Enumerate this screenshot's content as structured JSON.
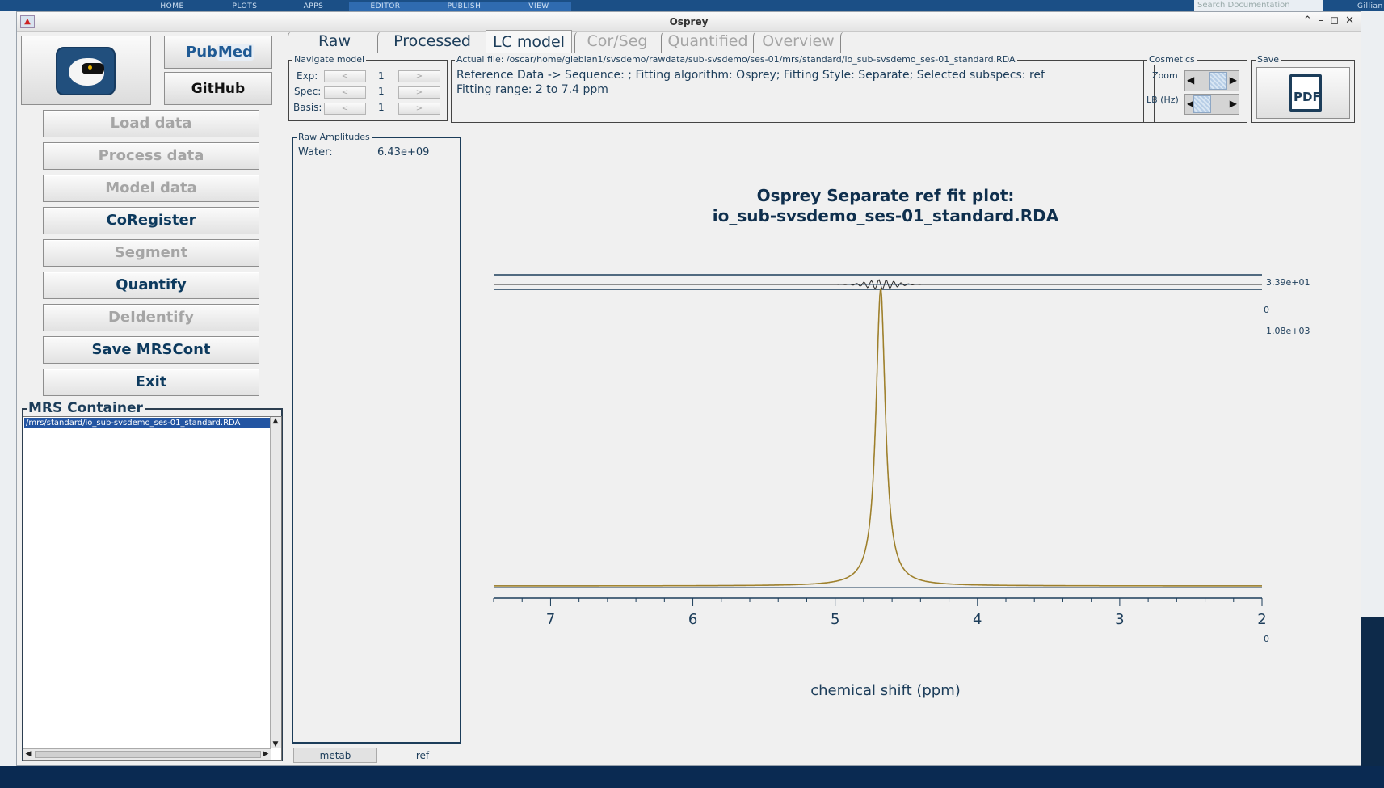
{
  "background": {
    "tabs": [
      "HOME",
      "PLOTS",
      "APPS",
      "EDITOR",
      "PUBLISH",
      "VIEW"
    ],
    "search_placeholder": "Search Documentation",
    "user": "Gillian"
  },
  "window": {
    "title": "Osprey"
  },
  "sidebar": {
    "pubmed": {
      "pub": "Pub",
      "med": "Med"
    },
    "github_label": "GitHub",
    "buttons": {
      "load": "Load data",
      "process": "Process data",
      "model": "Model data",
      "coregister": "CoRegister",
      "segment": "Segment",
      "quantify": "Quantify",
      "deidentify": "DeIdentify",
      "save_mrscont": "Save MRSCont",
      "exit": "Exit"
    },
    "container": {
      "label": "MRS Container",
      "selected_item": "/mrs/standard/io_sub-svsdemo_ses-01_standard.RDA"
    }
  },
  "tabs": [
    "Raw",
    "Processed",
    "LC model",
    "Cor/Seg",
    "Quantified",
    "Overview"
  ],
  "navigate": {
    "label": "Navigate model",
    "rows": [
      {
        "name": "Exp:",
        "value": "1"
      },
      {
        "name": "Spec:",
        "value": "1"
      },
      {
        "name": "Basis:",
        "value": "1"
      }
    ],
    "prev": "<",
    "next": ">"
  },
  "file_info": {
    "label": "Actual file: /oscar/home/gleblan1/svsdemo/rawdata/sub-svsdemo/ses-01/mrs/standard/io_sub-svsdemo_ses-01_standard.RDA",
    "line1": "Reference Data -> Sequence:  ; Fitting algorithm: Osprey; Fitting Style: Separate; Selected subspecs: ref",
    "line2": "Fitting range: 2 to 7.4 ppm"
  },
  "cosmetics": {
    "label": "Cosmetics",
    "zoom_label": "Zoom",
    "lb_label": "LB (Hz)"
  },
  "save": {
    "label": "Save",
    "pdf_label": "PDF"
  },
  "amplitudes": {
    "label": "Raw Amplitudes",
    "water_label": "Water:",
    "water_value": "6.43e+09"
  },
  "plot": {
    "title_line1": "Osprey Separate ref fit plot:",
    "title_line2": "io_sub-svsdemo_ses-01_standard.RDA",
    "residual_max": "3.39e+01",
    "residual_zero": "0",
    "spectrum_max": "1.08e+03",
    "spectrum_zero": "0",
    "xlabel": "chemical shift (ppm)",
    "xticks": [
      "7",
      "6",
      "5",
      "4",
      "3",
      "2"
    ],
    "colors": {
      "axis": "#1c3d5a",
      "fit": "#b08d2a",
      "data": "#2a2a2a"
    }
  },
  "chart_data": {
    "type": "line",
    "title": "Osprey Separate ref fit plot: io_sub-svsdemo_ses-01_standard.RDA",
    "xlabel": "chemical shift (ppm)",
    "ylabel": "",
    "xlim": [
      7.4,
      2
    ],
    "x_reversed": true,
    "series": [
      {
        "name": "",
        "type": "lorentzian",
        "center": 4.68,
        "peak": 1080,
        "hwhm": 0.04
      }
    ]
  },
  "bottom_tabs": [
    "metab",
    "ref"
  ]
}
